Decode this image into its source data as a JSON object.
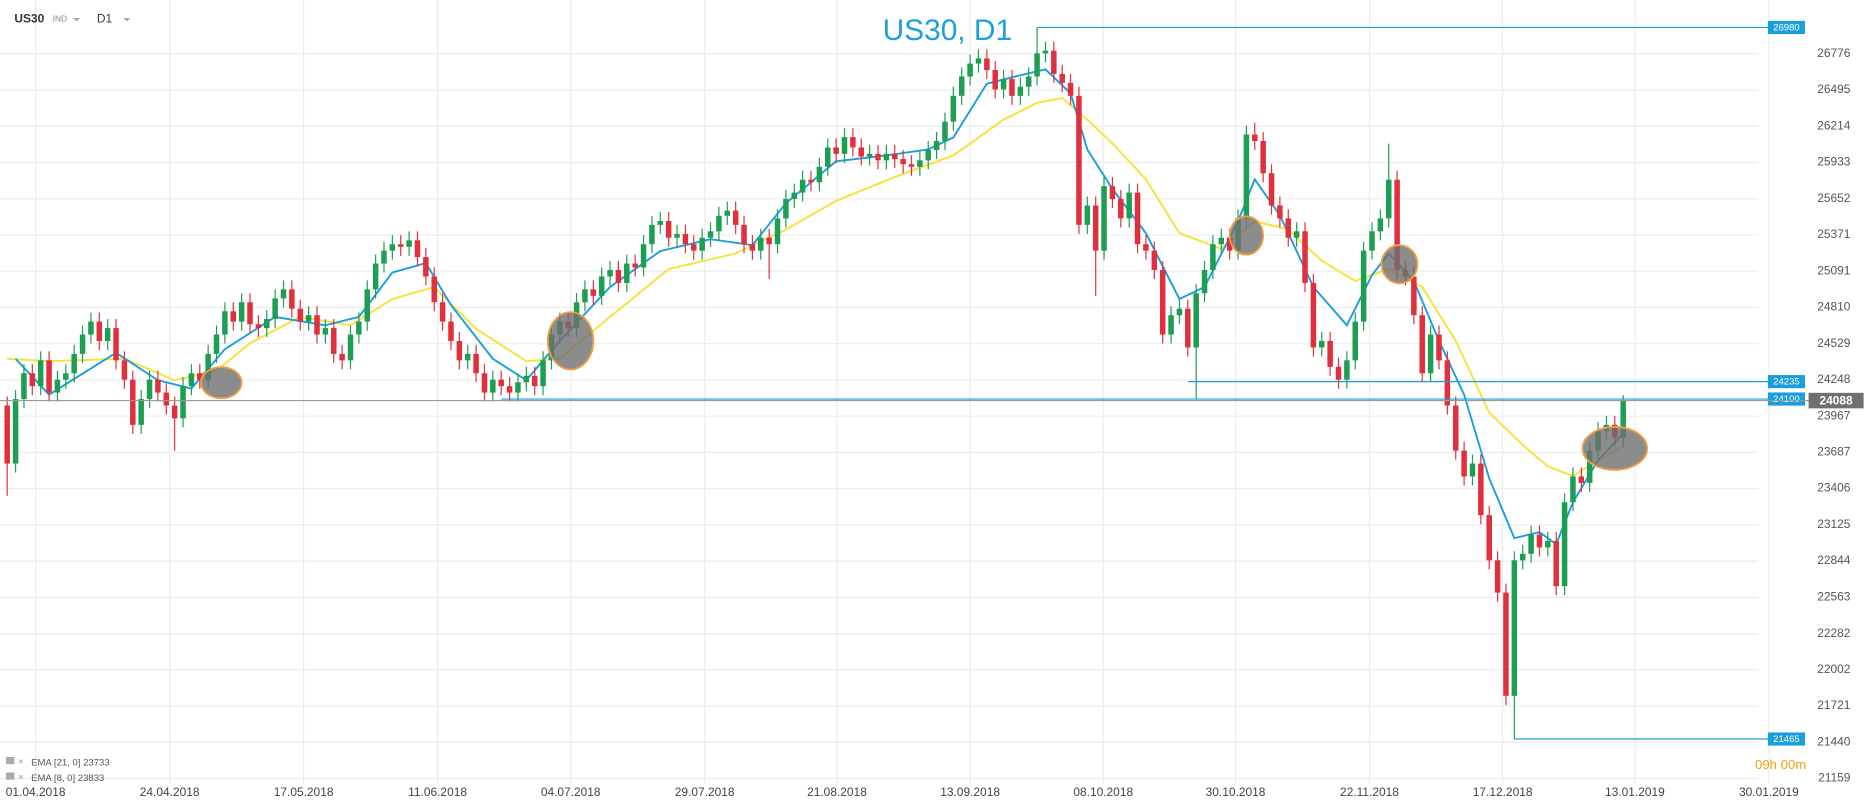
{
  "chart_data": {
    "type": "candlestick",
    "title": "US30, D1",
    "symbol": "US30",
    "market": "IND",
    "timeframe": "D1",
    "countdown": "09h 00m",
    "colors": {
      "up": "#1e9e52",
      "down": "#e0303d"
    },
    "grid": true,
    "xlim": [
      -0.86,
      220.57
    ],
    "ylim": [
      21122,
      27100
    ],
    "xticks": [
      {
        "value": 3.4,
        "label": "01.04.2018"
      },
      {
        "value": 19.4,
        "label": "24.04.2018"
      },
      {
        "value": 35.4,
        "label": "17.05.2018"
      },
      {
        "value": 51.4,
        "label": "11.06.2018"
      },
      {
        "value": 67.3,
        "label": "04.07.2018"
      },
      {
        "value": 83.3,
        "label": "29.07.2018"
      },
      {
        "value": 99.1,
        "label": "21.08.2018"
      },
      {
        "value": 115,
        "label": "13.09.2018"
      },
      {
        "value": 130.9,
        "label": "08.10.2018"
      },
      {
        "value": 146.7,
        "label": "30.10.2018"
      },
      {
        "value": 162.7,
        "label": "22.11.2018"
      },
      {
        "value": 178.6,
        "label": "17.12.2018"
      },
      {
        "value": 194.4,
        "label": "13.01.2019"
      },
      {
        "value": 210.4,
        "label": "30.01.2019"
      }
    ],
    "yticks": [
      26776,
      26495,
      26214,
      25933,
      25652,
      25371,
      25091,
      24810,
      24529,
      24248,
      23967,
      23687,
      23406,
      23125,
      22844,
      22563,
      22282,
      22002,
      21721,
      21440,
      21159
    ],
    "open": [
      24050,
      23600,
      24100,
      24300,
      24200,
      24400,
      24150,
      24250,
      24300,
      24450,
      24600,
      24700,
      24550,
      24650,
      24400,
      24250,
      23900,
      24100,
      24250,
      24150,
      24050,
      23950,
      24200,
      24300,
      24250,
      24450,
      24600,
      24780,
      24700,
      24850,
      24680,
      24650,
      24720,
      24880,
      24950,
      24800,
      24700,
      24750,
      24600,
      24650,
      24450,
      24400,
      24600,
      24700,
      24950,
      25150,
      25250,
      25300,
      25280,
      25330,
      25200,
      25050,
      24850,
      24700,
      24550,
      24400,
      24450,
      24300,
      24150,
      24250,
      24200,
      24150,
      24230,
      24280,
      24200,
      24400,
      24600,
      24700,
      24650,
      24850,
      24950,
      24900,
      25050,
      25100,
      25000,
      25150,
      25120,
      25300,
      25450,
      25480,
      25350,
      25380,
      25300,
      25250,
      25350,
      25400,
      25520,
      25560,
      25450,
      25300,
      25250,
      25350,
      25300,
      25500,
      25650,
      25700,
      25800,
      25780,
      25900,
      26050,
      26000,
      26130,
      26050,
      25980,
      26000,
      25950,
      26000,
      25960,
      25920,
      25900,
      25950,
      26030,
      26100,
      26250,
      26450,
      26600,
      26700,
      26740,
      26650,
      26500,
      26580,
      26450,
      26520,
      26600,
      26780,
      26800,
      26620,
      26550,
      26450,
      25450,
      25600,
      25250,
      25750,
      25650,
      25500,
      25700,
      25300,
      25250,
      25100,
      24600,
      24750,
      24800,
      24500,
      24920,
      25100,
      25300,
      25350,
      25250,
      25500,
      26150,
      26100,
      25850,
      25600,
      25500,
      25350,
      25400,
      25000,
      24500,
      24550,
      24350,
      24250,
      24400,
      24700,
      25250,
      25400,
      25500,
      25800,
      25100,
      25050,
      24750,
      24300,
      24600,
      24400,
      24050,
      23700,
      23500,
      23600,
      23200,
      22850,
      22600,
      21800,
      22850,
      22900,
      23050,
      22950,
      23000,
      22650,
      23300,
      23500,
      23450,
      23700,
      23850,
      23900,
      23800
    ],
    "high": [
      24120,
      24170,
      24370,
      24370,
      24470,
      24470,
      24320,
      24370,
      24520,
      24670,
      24770,
      24770,
      24720,
      24720,
      24470,
      24320,
      24170,
      24320,
      24320,
      24220,
      24120,
      24270,
      24370,
      24370,
      24520,
      24670,
      24850,
      24850,
      24920,
      24920,
      24750,
      24790,
      24950,
      25020,
      25020,
      24870,
      24820,
      24820,
      24720,
      24720,
      24520,
      24670,
      24770,
      25020,
      25220,
      25320,
      25370,
      25370,
      25400,
      25400,
      25270,
      25120,
      24920,
      24770,
      24620,
      24520,
      24520,
      24370,
      24320,
      24320,
      24270,
      24300,
      24350,
      24350,
      24470,
      24670,
      24770,
      24770,
      24920,
      25020,
      25020,
      25120,
      25170,
      25170,
      25220,
      25220,
      25370,
      25520,
      25550,
      25550,
      25450,
      25450,
      25370,
      25420,
      25470,
      25590,
      25630,
      25630,
      25520,
      25370,
      25420,
      25420,
      25570,
      25720,
      25770,
      25870,
      25870,
      25970,
      26120,
      26120,
      26200,
      26200,
      26120,
      26070,
      26070,
      26070,
      26070,
      26030,
      25990,
      26020,
      26100,
      26170,
      26320,
      26520,
      26670,
      26770,
      26810,
      26810,
      26720,
      26650,
      26650,
      26590,
      26670,
      26980,
      26870,
      26870,
      26690,
      26620,
      26520,
      25670,
      25670,
      25820,
      25820,
      25720,
      25770,
      25770,
      25370,
      25320,
      25170,
      24820,
      24870,
      24870,
      24990,
      25170,
      25370,
      25420,
      25420,
      25570,
      26220,
      26240,
      26170,
      25920,
      25670,
      25570,
      25470,
      25470,
      25070,
      24620,
      24620,
      24420,
      24470,
      24770,
      25320,
      25470,
      25570,
      26080,
      25870,
      25170,
      25120,
      24820,
      24670,
      24670,
      24470,
      24120,
      23770,
      23670,
      23670,
      23270,
      22920,
      22670,
      22920,
      22970,
      23120,
      23120,
      23070,
      23070,
      23370,
      23570,
      23570,
      23770,
      23920,
      23970,
      23970,
      24130
    ],
    "low": [
      23350,
      23530,
      24030,
      24130,
      24130,
      24080,
      24080,
      24180,
      24230,
      24380,
      24530,
      24480,
      24480,
      24330,
      24180,
      23830,
      23830,
      24030,
      24080,
      23980,
      23700,
      23880,
      24130,
      24180,
      24180,
      24380,
      24530,
      24630,
      24630,
      24610,
      24580,
      24580,
      24650,
      24810,
      24730,
      24630,
      24630,
      24530,
      24530,
      24380,
      24330,
      24330,
      24530,
      24630,
      24880,
      25080,
      25180,
      25210,
      25210,
      25130,
      24980,
      24780,
      24630,
      24480,
      24330,
      24330,
      24230,
      24080,
      24080,
      24130,
      24080,
      24080,
      24160,
      24130,
      24130,
      24330,
      24530,
      24580,
      24580,
      24780,
      24830,
      24830,
      24980,
      24930,
      24930,
      25050,
      25050,
      25230,
      25380,
      25280,
      25280,
      25230,
      25180,
      25180,
      25280,
      25330,
      25450,
      25380,
      25230,
      25180,
      25180,
      25030,
      25230,
      25430,
      25580,
      25630,
      25710,
      25710,
      25830,
      25930,
      25930,
      25980,
      25910,
      25910,
      25880,
      25880,
      25890,
      25850,
      25830,
      25830,
      25880,
      25960,
      26030,
      26180,
      26380,
      26530,
      26630,
      26580,
      26430,
      26430,
      26380,
      26380,
      26450,
      26530,
      26710,
      26550,
      26480,
      26380,
      25380,
      25380,
      24900,
      25180,
      25580,
      25430,
      25430,
      25230,
      25180,
      25030,
      24530,
      24530,
      24680,
      24430,
      24100,
      24850,
      25030,
      25230,
      25180,
      25180,
      25430,
      26030,
      25780,
      25530,
      25430,
      25280,
      25280,
      24930,
      24430,
      24430,
      24280,
      24180,
      24180,
      24330,
      24630,
      25180,
      25330,
      25430,
      25030,
      24980,
      24680,
      24230,
      24230,
      24330,
      23980,
      23630,
      23430,
      23430,
      23130,
      22780,
      22530,
      21730,
      21465,
      22780,
      22830,
      22880,
      22880,
      22580,
      22580,
      23230,
      23380,
      23380,
      23630,
      23780,
      23730,
      23730
    ],
    "close": [
      23600,
      24100,
      24300,
      24200,
      24400,
      24150,
      24250,
      24300,
      24450,
      24600,
      24700,
      24550,
      24650,
      24400,
      24250,
      23900,
      24100,
      24250,
      24150,
      24050,
      23950,
      24200,
      24300,
      24250,
      24450,
      24600,
      24780,
      24700,
      24850,
      24680,
      24650,
      24720,
      24880,
      24950,
      24800,
      24700,
      24750,
      24600,
      24650,
      24450,
      24400,
      24600,
      24700,
      24950,
      25150,
      25250,
      25300,
      25280,
      25330,
      25200,
      25050,
      24850,
      24700,
      24550,
      24400,
      24450,
      24300,
      24150,
      24250,
      24200,
      24150,
      24230,
      24280,
      24200,
      24400,
      24600,
      24700,
      24650,
      24850,
      24950,
      24900,
      25050,
      25100,
      25000,
      25150,
      25120,
      25300,
      25450,
      25480,
      25350,
      25380,
      25300,
      25250,
      25350,
      25400,
      25520,
      25560,
      25450,
      25300,
      25250,
      25350,
      25300,
      25500,
      25650,
      25700,
      25800,
      25780,
      25900,
      26050,
      26000,
      26130,
      26050,
      25980,
      26000,
      25950,
      26000,
      25960,
      25920,
      25900,
      25950,
      26030,
      26100,
      26250,
      26450,
      26600,
      26700,
      26740,
      26650,
      26500,
      26580,
      26450,
      26520,
      26600,
      26780,
      26800,
      26620,
      26550,
      26450,
      25450,
      25600,
      25250,
      25750,
      25650,
      25500,
      25700,
      25300,
      25250,
      25100,
      24600,
      24750,
      24800,
      24500,
      24920,
      25100,
      25300,
      25350,
      25250,
      25500,
      26150,
      26100,
      25850,
      25600,
      25500,
      25350,
      25400,
      25000,
      24500,
      24550,
      24350,
      24250,
      24400,
      24700,
      25250,
      25400,
      25500,
      25800,
      25100,
      25050,
      24750,
      24300,
      24600,
      24400,
      24050,
      23700,
      23500,
      23600,
      23200,
      22850,
      22600,
      21800,
      22850,
      22900,
      23050,
      22950,
      23000,
      22650,
      23300,
      23500,
      23450,
      23700,
      23850,
      23900,
      23800,
      24088
    ],
    "series": [
      {
        "name": "EMA [21, 0] 23733",
        "color": "#f7e13a",
        "x": [
          0,
          5,
          14,
          20,
          25,
          29,
          35,
          41,
          46,
          51,
          56,
          62,
          66,
          72,
          79,
          87,
          93,
          99,
          106,
          113,
          119,
          123,
          126,
          129,
          132,
          136,
          140,
          145,
          149,
          153,
          157,
          161,
          165,
          169,
          173,
          177,
          181,
          184,
          187,
          190,
          193
        ],
        "values": [
          24412,
          24394,
          24412,
          24245,
          24320,
          24533,
          24737,
          24672,
          24876,
          24968,
          24644,
          24394,
          24412,
          24737,
          25107,
          25228,
          25413,
          25636,
          25821,
          25988,
          26266,
          26396,
          26433,
          26266,
          26081,
          25802,
          25385,
          25265,
          25478,
          25413,
          25172,
          25015,
          25107,
          24968,
          24551,
          23995,
          23745,
          23578,
          23504,
          23625,
          23733
        ]
      },
      {
        "name": "EMA [8, 0] 23833",
        "color": "#1a9fdc",
        "x": [
          1,
          5,
          13,
          18,
          22,
          26,
          32,
          38,
          42,
          46,
          50,
          53,
          58,
          62,
          66,
          72,
          78,
          84,
          89,
          93,
          99,
          105,
          110,
          113,
          117,
          121,
          124,
          127,
          129,
          132,
          136,
          140,
          143,
          147,
          149,
          152,
          156,
          160,
          163,
          165,
          168,
          171,
          174,
          177,
          180,
          183,
          185,
          187,
          190,
          193
        ],
        "values": [
          24412,
          24134,
          24459,
          24245,
          24181,
          24486,
          24737,
          24672,
          24737,
          25080,
          25154,
          24829,
          24412,
          24245,
          24551,
          24968,
          25246,
          25339,
          25293,
          25617,
          25942,
          25988,
          26034,
          26127,
          26544,
          26609,
          26655,
          26470,
          26034,
          25728,
          25385,
          24876,
          24968,
          25478,
          25802,
          25524,
          24968,
          24672,
          25061,
          25228,
          25015,
          24551,
          24134,
          23485,
          23022,
          23068,
          22976,
          23300,
          23625,
          23833
        ]
      }
    ],
    "levels": [
      {
        "value": 26980,
        "start": 123
      },
      {
        "value": 24235,
        "start": 141
      },
      {
        "value": 24100,
        "start": 59
      },
      {
        "value": 21465,
        "start": 180
      }
    ],
    "level_color": "#1a9fdc"
  }
}
